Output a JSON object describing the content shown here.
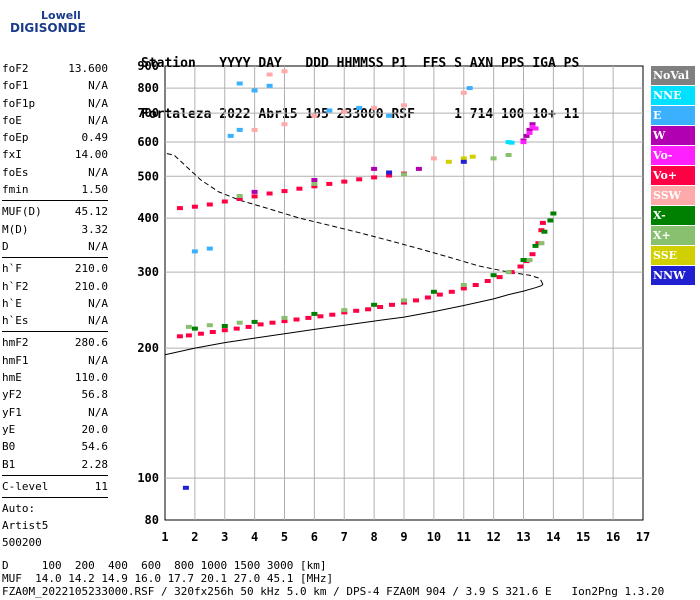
{
  "logo": {
    "line1": "Lowell",
    "line2": "DIGISONDE"
  },
  "header": {
    "labels": "Station   YYYY DAY   DDD HHMMSS P1  FFS S AXN PPS IGA PS",
    "values": "Fortaleza 2022 Abr15 105 233000 RSF     1 714 100 10+ 11"
  },
  "params": {
    "group1": [
      {
        "label": "foF2",
        "value": "13.600"
      },
      {
        "label": "foF1",
        "value": "N/A"
      },
      {
        "label": "foF1p",
        "value": "N/A"
      },
      {
        "label": "foE",
        "value": "N/A"
      },
      {
        "label": "foEp",
        "value": "0.49"
      },
      {
        "label": "fxI",
        "value": "14.00"
      },
      {
        "label": "foEs",
        "value": "N/A"
      },
      {
        "label": "fmin",
        "value": "1.50"
      }
    ],
    "group2": [
      {
        "label": "MUF(D)",
        "value": "45.12"
      },
      {
        "label": "M(D)",
        "value": "3.32"
      },
      {
        "label": "D",
        "value": "N/A"
      }
    ],
    "group3": [
      {
        "label": "h`F",
        "value": "210.0"
      },
      {
        "label": "h`F2",
        "value": "210.0"
      },
      {
        "label": "h`E",
        "value": "N/A"
      },
      {
        "label": "h`Es",
        "value": "N/A"
      }
    ],
    "group4": [
      {
        "label": "hmF2",
        "value": "280.6"
      },
      {
        "label": "hmF1",
        "value": "N/A"
      },
      {
        "label": "hmE",
        "value": "110.0"
      },
      {
        "label": "yF2",
        "value": "56.8"
      },
      {
        "label": "yF1",
        "value": "N/A"
      },
      {
        "label": "yE",
        "value": "20.0"
      },
      {
        "label": "B0",
        "value": "54.6"
      },
      {
        "label": "B1",
        "value": "2.28"
      }
    ],
    "group5": [
      {
        "label": "C-level",
        "value": "11"
      }
    ],
    "auto": [
      "Auto:",
      "Artist5",
      "500200"
    ]
  },
  "legend": [
    {
      "label": "NoVal",
      "color": "#808080"
    },
    {
      "label": "NNE",
      "color": "#00e0ff"
    },
    {
      "label": "E",
      "color": "#3ab0ff"
    },
    {
      "label": "W",
      "color": "#b000b0"
    },
    {
      "label": "Vo-",
      "color": "#ff20ff"
    },
    {
      "label": "Vo+",
      "color": "#ff0044"
    },
    {
      "label": "SSW",
      "color": "#ffaaaa"
    },
    {
      "label": "X-",
      "color": "#008000"
    },
    {
      "label": "X+",
      "color": "#88c070"
    },
    {
      "label": "SSE",
      "color": "#d0d000"
    },
    {
      "label": "NNW",
      "color": "#2020d0"
    }
  ],
  "footer": {
    "line1": "D     100  200  400  600  800 1000 1500 3000 [km]",
    "line2": "MUF  14.0 14.2 14.9 16.0 17.7 20.1 27.0 45.1 [MHz]",
    "line3": "FZA0M_2022105233000.RSF / 320fx256h 50 kHz 5.0 km / DPS-4 FZA0M 904 / 3.9 S 321.6 E   Ion2Png 1.3.20"
  },
  "chart_data": {
    "type": "scatter",
    "x_ticks": [
      "1",
      "2",
      "3",
      "4",
      "5",
      "6",
      "7",
      "8",
      "9",
      "10",
      "11",
      "12",
      "13",
      "14",
      "15",
      "16",
      "17"
    ],
    "y_ticks": [
      "80",
      "100",
      "200",
      "300",
      "400",
      "500",
      "600",
      "700",
      "800",
      "900"
    ],
    "xlim": [
      1,
      17
    ],
    "y_scale": "log",
    "ylim": [
      80,
      900
    ],
    "grid": true,
    "legend_position": "right",
    "series": [
      {
        "name": "Vo+",
        "color": "#ff0044",
        "points": [
          [
            1.5,
            213
          ],
          [
            1.8,
            214
          ],
          [
            2.2,
            216
          ],
          [
            2.6,
            218
          ],
          [
            3.0,
            220
          ],
          [
            3.4,
            222
          ],
          [
            3.8,
            224
          ],
          [
            4.2,
            227
          ],
          [
            4.6,
            229
          ],
          [
            5.0,
            231
          ],
          [
            5.4,
            233
          ],
          [
            5.8,
            235
          ],
          [
            6.2,
            237
          ],
          [
            6.6,
            239
          ],
          [
            7.0,
            242
          ],
          [
            7.4,
            244
          ],
          [
            7.8,
            246
          ],
          [
            8.2,
            249
          ],
          [
            8.6,
            252
          ],
          [
            9.0,
            255
          ],
          [
            9.4,
            258
          ],
          [
            9.8,
            262
          ],
          [
            10.2,
            266
          ],
          [
            10.6,
            270
          ],
          [
            11.0,
            275
          ],
          [
            11.4,
            280
          ],
          [
            11.8,
            286
          ],
          [
            12.2,
            292
          ],
          [
            12.6,
            300
          ],
          [
            12.9,
            309
          ],
          [
            13.1,
            318
          ],
          [
            13.3,
            330
          ],
          [
            13.5,
            350
          ],
          [
            13.6,
            375
          ],
          [
            13.65,
            390
          ],
          [
            1.5,
            422
          ],
          [
            2.0,
            425
          ],
          [
            2.5,
            430
          ],
          [
            3.0,
            437
          ],
          [
            3.5,
            443
          ],
          [
            4.0,
            449
          ],
          [
            4.5,
            456
          ],
          [
            5.0,
            462
          ],
          [
            5.5,
            468
          ],
          [
            6.0,
            474
          ],
          [
            6.5,
            480
          ],
          [
            7.0,
            486
          ],
          [
            7.5,
            492
          ],
          [
            8.0,
            497
          ],
          [
            8.5,
            502
          ],
          [
            9.0,
            507
          ]
        ]
      },
      {
        "name": "X-",
        "color": "#008000",
        "points": [
          [
            2.0,
            222
          ],
          [
            3.0,
            225
          ],
          [
            4.0,
            230
          ],
          [
            6.0,
            240
          ],
          [
            8.0,
            252
          ],
          [
            10.0,
            270
          ],
          [
            12.0,
            295
          ],
          [
            13.0,
            320
          ],
          [
            13.4,
            345
          ],
          [
            13.7,
            372
          ],
          [
            13.9,
            395
          ],
          [
            14.0,
            410
          ]
        ]
      },
      {
        "name": "X+",
        "color": "#88c070",
        "points": [
          [
            1.8,
            224
          ],
          [
            2.5,
            226
          ],
          [
            3.5,
            229
          ],
          [
            5.0,
            235
          ],
          [
            7.0,
            245
          ],
          [
            9.0,
            258
          ],
          [
            11.0,
            280
          ],
          [
            12.5,
            300
          ],
          [
            13.2,
            320
          ],
          [
            13.6,
            350
          ],
          [
            3.5,
            450
          ],
          [
            6.0,
            480
          ],
          [
            9.0,
            505
          ],
          [
            12.0,
            550
          ],
          [
            12.5,
            560
          ]
        ]
      },
      {
        "name": "W",
        "color": "#b000b0",
        "points": [
          [
            4.0,
            460
          ],
          [
            6.0,
            490
          ],
          [
            8.0,
            520
          ],
          [
            9.5,
            520
          ],
          [
            13.0,
            605
          ],
          [
            13.1,
            620
          ],
          [
            13.2,
            640
          ],
          [
            13.3,
            660
          ]
        ]
      },
      {
        "name": "Vo-",
        "color": "#ff20ff",
        "points": [
          [
            13.0,
            600
          ],
          [
            13.2,
            630
          ],
          [
            13.3,
            650
          ],
          [
            13.4,
            645
          ]
        ]
      },
      {
        "name": "SSW",
        "color": "#ffaaaa",
        "points": [
          [
            4.0,
            640
          ],
          [
            5.0,
            660
          ],
          [
            6.0,
            690
          ],
          [
            7.0,
            705
          ],
          [
            8.0,
            720
          ],
          [
            9.0,
            730
          ],
          [
            10.0,
            550
          ],
          [
            11.0,
            780
          ],
          [
            4.5,
            860
          ],
          [
            5.0,
            875
          ]
        ]
      },
      {
        "name": "E",
        "color": "#3ab0ff",
        "points": [
          [
            2.0,
            335
          ],
          [
            2.5,
            340
          ],
          [
            3.2,
            620
          ],
          [
            3.5,
            640
          ],
          [
            3.5,
            820
          ],
          [
            4.0,
            790
          ],
          [
            4.5,
            810
          ],
          [
            6.5,
            710
          ],
          [
            7.5,
            720
          ],
          [
            8.5,
            690
          ],
          [
            11.2,
            800
          ]
        ]
      },
      {
        "name": "NNE",
        "color": "#00e0ff",
        "points": [
          [
            12.5,
            600
          ],
          [
            12.6,
            598
          ]
        ]
      },
      {
        "name": "SSE",
        "color": "#d0d000",
        "points": [
          [
            10.5,
            540
          ],
          [
            11.0,
            550
          ],
          [
            11.3,
            555
          ]
        ]
      },
      {
        "name": "NNW",
        "color": "#2020d0",
        "points": [
          [
            1.7,
            95
          ],
          [
            8.5,
            510
          ],
          [
            11.0,
            540
          ]
        ]
      }
    ],
    "profile_curve": [
      [
        1.0,
        193
      ],
      [
        2.0,
        200
      ],
      [
        3.0,
        206
      ],
      [
        4.0,
        211
      ],
      [
        5.0,
        216
      ],
      [
        6.0,
        221
      ],
      [
        7.0,
        226
      ],
      [
        8.0,
        231
      ],
      [
        9.0,
        236
      ],
      [
        10.0,
        243
      ],
      [
        11.0,
        251
      ],
      [
        12.0,
        260
      ],
      [
        12.5,
        266
      ],
      [
        13.0,
        271
      ],
      [
        13.4,
        276
      ],
      [
        13.6,
        279
      ],
      [
        13.65,
        281
      ]
    ],
    "virtual_height_curve": [
      [
        13.65,
        281
      ],
      [
        13.55,
        290
      ],
      [
        13.2,
        295
      ],
      [
        12.5,
        300
      ],
      [
        11.5,
        310
      ],
      [
        10.5,
        325
      ],
      [
        9.5,
        340
      ],
      [
        8.5,
        355
      ],
      [
        7.5,
        370
      ],
      [
        6.5,
        385
      ],
      [
        5.5,
        400
      ],
      [
        4.5,
        420
      ],
      [
        3.5,
        440
      ],
      [
        2.8,
        460
      ],
      [
        2.2,
        490
      ],
      [
        1.8,
        520
      ],
      [
        1.3,
        560
      ],
      [
        1.0,
        565
      ]
    ]
  }
}
